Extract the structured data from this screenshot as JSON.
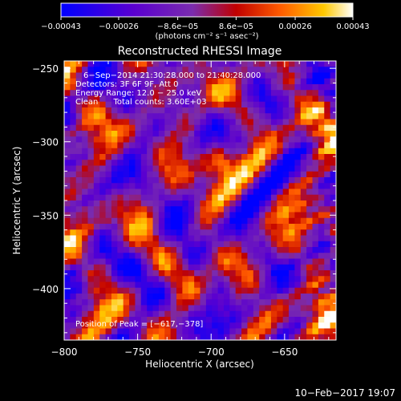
{
  "chart_data": {
    "type": "heatmap",
    "title": "Reconstructed RHESSI Image",
    "xlabel": "Heliocentric X (arcsec)",
    "ylabel": "Heliocentric Y (arcsec)",
    "xlim": [
      -800,
      -615
    ],
    "ylim": [
      -435,
      -245
    ],
    "x_ticks": [
      -800,
      -750,
      -700,
      -650
    ],
    "y_ticks": [
      -250,
      -300,
      -350,
      -400
    ],
    "x_tick_labels": [
      "−800",
      "−750",
      "−700",
      "−650"
    ],
    "y_tick_labels": [
      "−250",
      "−300",
      "−350",
      "−400"
    ],
    "colorbar": {
      "range": [
        -0.00043,
        0.00043
      ],
      "tick_values": [
        -0.00043,
        -0.00026,
        -8.6e-05,
        8.6e-05,
        0.00026,
        0.00043
      ],
      "tick_labels": [
        "−0.00043",
        "−0.00026",
        "−8.6e−05",
        "8.6e−05",
        "0.00026",
        "0.00043"
      ],
      "units": "(photons cm⁻² s⁻¹ asec⁻²)",
      "colors": [
        "#0000ff",
        "#5a00d0",
        "#7a2cae",
        "#c00000",
        "#ff5a00",
        "#ffc800",
        "#ffffff"
      ]
    },
    "annotations": [
      "6−Sep−2014 21:30:28.000 to 21:40:28.000",
      "Detectors: 3F 6F 9F, Att 0",
      "Energy Range: 12.0 − 25.0 keV",
      "Clean      Total counts: 3.60E+03"
    ],
    "peak_label": "Position of Peak = [−617,−378]",
    "peak": [
      -617,
      -378
    ],
    "grid": "off",
    "legend": "none"
  },
  "footer": {
    "date": "10−Feb−2017 19:07"
  }
}
